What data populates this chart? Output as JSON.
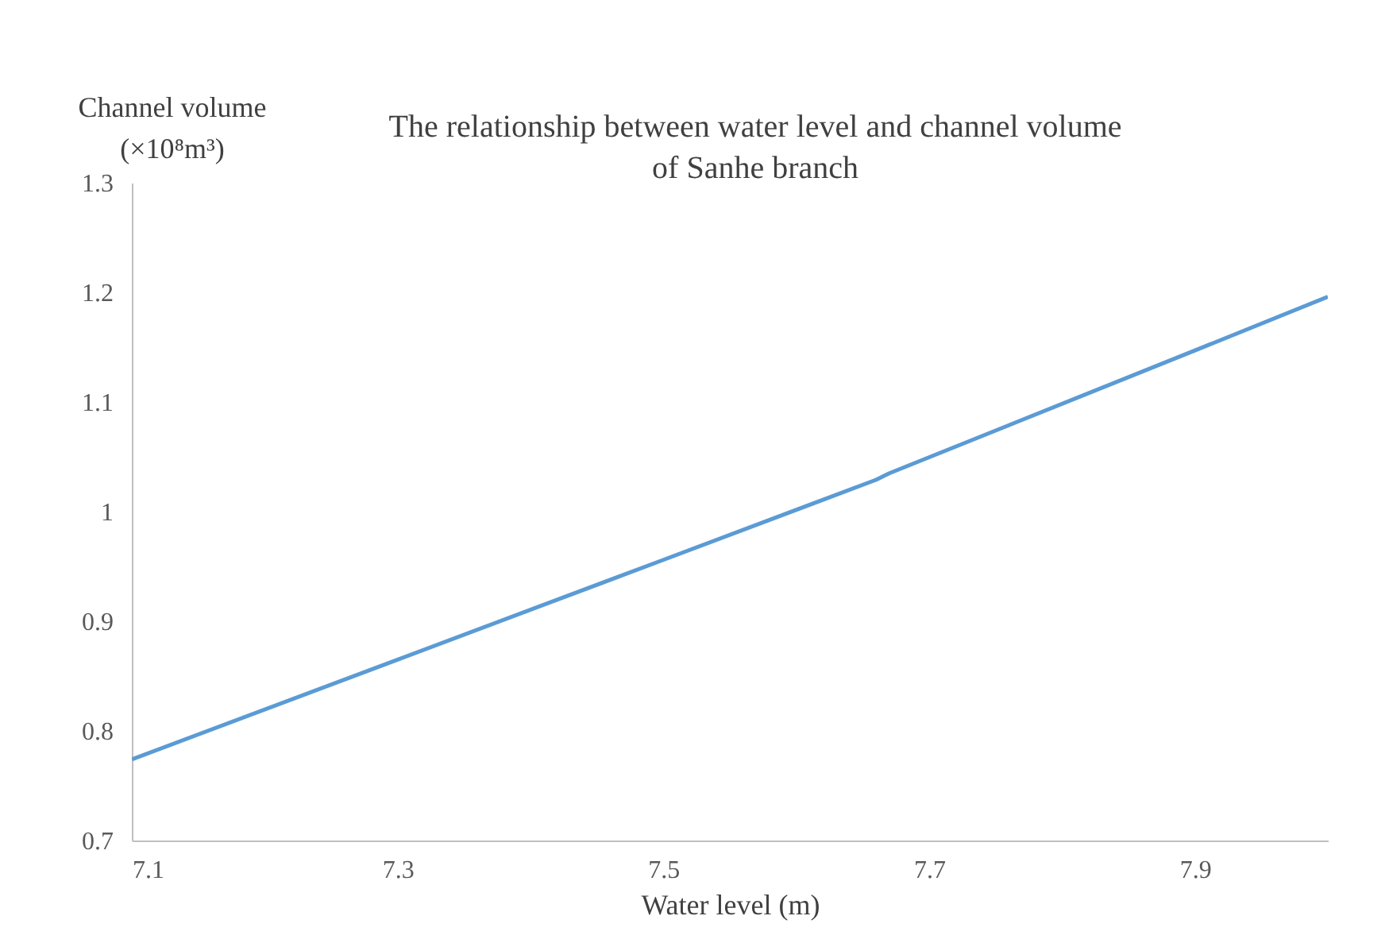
{
  "chart_data": {
    "type": "line",
    "title": "The relationship between water level and channel volume\nof Sanhe branch",
    "xlabel": "Water level (m)",
    "ylabel": "Channel volume\n(×10⁸m³)",
    "x": [
      7.1,
      7.3,
      7.5,
      7.66,
      7.67,
      7.9,
      8.0
    ],
    "series": [
      {
        "color": "#5b9bd5",
        "values": [
          0.774,
          0.865,
          0.956,
          1.029,
          1.035,
          1.147,
          1.196
        ]
      }
    ],
    "xlim": [
      7.1,
      8.0
    ],
    "xticks": [
      7.1,
      7.3,
      7.5,
      7.7,
      7.9
    ],
    "ylim": [
      0.7,
      1.3
    ],
    "yticks": [
      0.7,
      0.8,
      0.9,
      {
        "value": 1,
        "label": "1"
      },
      1.1,
      1.2,
      1.3
    ],
    "grid": false,
    "legend": false,
    "marker": "none",
    "line_style": "solid"
  }
}
